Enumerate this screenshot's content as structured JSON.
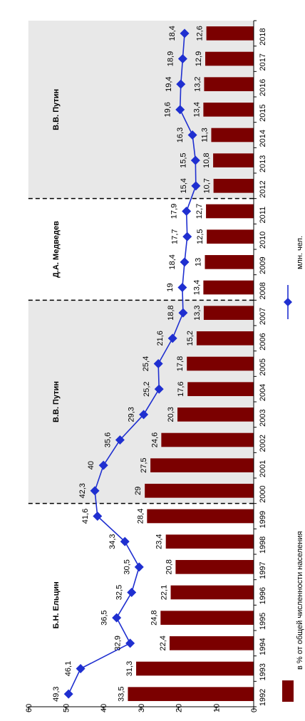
{
  "chart_data": {
    "type": "bar",
    "orientation": "rotated-90",
    "x": [
      "1992",
      "1993",
      "1994",
      "1995",
      "1996",
      "1997",
      "1998",
      "1999",
      "2000",
      "2001",
      "2002",
      "2003",
      "2004",
      "2005",
      "2006",
      "2007",
      "2008",
      "2009",
      "2010",
      "2011",
      "2012",
      "2013",
      "2014",
      "2015",
      "2016",
      "2017",
      "2018"
    ],
    "x_labels": [
      "1992",
      "1993",
      "1994",
      "1995",
      "1996",
      "1997",
      "1998",
      "1999",
      "2000",
      "2001",
      "2002",
      "2003",
      "2004",
      "2005",
      "2006",
      "2007",
      "2008",
      "2009",
      "2010",
      "2011",
      "2012",
      "2013",
      "2014",
      "2015",
      "2016",
      "2017",
      "2018"
    ],
    "bars": {
      "name": "в % от общей численности населения",
      "values": [
        33.5,
        31.3,
        22.4,
        24.8,
        22.1,
        20.8,
        23.4,
        28.4,
        29,
        27.5,
        24.6,
        20.3,
        17.6,
        17.8,
        15.2,
        13.3,
        13.4,
        13,
        12.5,
        12.7,
        10.7,
        10.8,
        11.3,
        13.4,
        13.2,
        12.9,
        12.6
      ],
      "labels": [
        "33,5",
        "31,3",
        "22,4",
        "24,8",
        "22,1",
        "20,8",
        "23,4",
        "28,4",
        "29",
        "27,5",
        "24,6",
        "20,3",
        "17,6",
        "17,8",
        "15,2",
        "13,3",
        "13,4",
        "13",
        "12,5",
        "12,7",
        "10,7",
        "10,8",
        "11,3",
        "13,4",
        "13,2",
        "12,9",
        "12,6"
      ],
      "color": "#7b0000"
    },
    "line": {
      "name": "млн. чел.",
      "values": [
        49.3,
        46.1,
        32.9,
        36.5,
        32.5,
        30.5,
        34.3,
        41.6,
        42.3,
        40,
        35.6,
        29.3,
        25.2,
        25.4,
        21.6,
        18.8,
        19,
        18.4,
        17.7,
        17.9,
        15.4,
        15.5,
        16.3,
        19.6,
        19.4,
        18.9,
        18.4
      ],
      "labels": [
        "49,3",
        "46,1",
        "32,9",
        "36,5",
        "32,5",
        "30,5",
        "34,3",
        "41,6",
        "42,3",
        "40",
        "35,6",
        "29,3",
        "25,2",
        "25,4",
        "21,6",
        "18,8",
        "19",
        "18,4",
        "17,7",
        "17,9",
        "15,4",
        "15,5",
        "16,3",
        "19,6",
        "19,4",
        "18,9",
        "18,4"
      ],
      "color": "#1f2fd0"
    },
    "value_axis": {
      "min": 0,
      "max": 60,
      "ticks": [
        0,
        10,
        20,
        30,
        40,
        50,
        60
      ],
      "tick_labels": [
        "0",
        "10",
        "20",
        "30",
        "40",
        "50",
        "60"
      ]
    },
    "eras": [
      {
        "label": "Б.Н. Ельцин",
        "from": "1992",
        "to": "1999",
        "shaded": false
      },
      {
        "label": "В.В. Путин",
        "from": "2000",
        "to": "2007",
        "shaded": true
      },
      {
        "label": "Д.А. Медведев",
        "from": "2008",
        "to": "2011",
        "shaded": false
      },
      {
        "label": "В.В. Путин",
        "from": "2012",
        "to": "2018",
        "shaded": true
      }
    ],
    "era_shade_color": "#e8e8e8",
    "legend": {
      "placement": "right",
      "items": [
        {
          "label": "в % от общей численности населения",
          "kind": "bar"
        },
        {
          "label": "млн. чел.",
          "kind": "line"
        }
      ]
    },
    "grid": false
  }
}
